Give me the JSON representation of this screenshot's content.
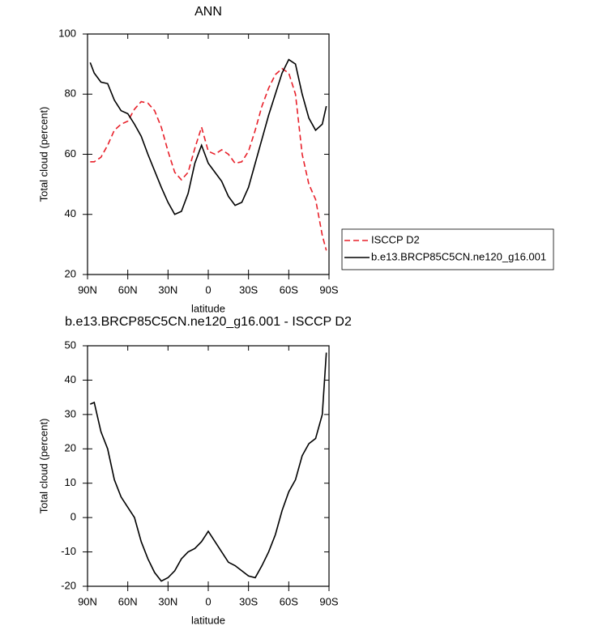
{
  "chart_data": [
    {
      "type": "line",
      "title": "ANN",
      "x_label": "latitude",
      "y_label": "Total cloud (percent)",
      "x": [
        88,
        85,
        80,
        75,
        70,
        65,
        60,
        55,
        50,
        45,
        40,
        35,
        30,
        25,
        20,
        15,
        10,
        5,
        0,
        -5,
        -10,
        -15,
        -20,
        -25,
        -30,
        -35,
        -40,
        -45,
        -50,
        -55,
        -60,
        -65,
        -70,
        -75,
        -80,
        -85,
        -88
      ],
      "series": [
        {
          "name": "ISCCP D2",
          "color": "#e8202a",
          "style": "dashed",
          "values": [
            57.5,
            57.5,
            59,
            63,
            68,
            70,
            71,
            75,
            77.5,
            77,
            74.5,
            69,
            61,
            54,
            51.5,
            54,
            62,
            69,
            61,
            60,
            61.5,
            60,
            57,
            57.5,
            61,
            68,
            76,
            82,
            86.5,
            88.5,
            87,
            80,
            60,
            50,
            45,
            33,
            28
          ]
        },
        {
          "name": "b.e13.BRCP85C5CN.ne120_g16.001",
          "color": "#000000",
          "style": "solid",
          "values": [
            90.5,
            87,
            84,
            83.5,
            78,
            74.5,
            73.5,
            70,
            66,
            60,
            54.5,
            49,
            44,
            40,
            41,
            47,
            57,
            63,
            57,
            54,
            51,
            46,
            43,
            44,
            49,
            57,
            65,
            73,
            80,
            87,
            91.5,
            90,
            80,
            72,
            68,
            70,
            76
          ]
        }
      ],
      "xlim": [
        90,
        -90
      ],
      "ylim": [
        20,
        100
      ],
      "xticks": [
        {
          "value": 90,
          "label": "90N"
        },
        {
          "value": 60,
          "label": "60N"
        },
        {
          "value": 30,
          "label": "30N"
        },
        0,
        {
          "value": -30,
          "label": "30S"
        },
        {
          "value": -60,
          "label": "60S"
        },
        {
          "value": -90,
          "label": "90S"
        }
      ],
      "yticks": [
        20,
        40,
        60,
        80,
        100
      ],
      "legend": "right"
    },
    {
      "type": "line",
      "title": "b.e13.BRCP85C5CN.ne120_g16.001 - ISCCP D2",
      "x_label": "latitude",
      "y_label": "Total cloud (percent)",
      "x": [
        88,
        85,
        80,
        75,
        70,
        65,
        60,
        55,
        50,
        45,
        40,
        35,
        30,
        25,
        20,
        15,
        10,
        5,
        0,
        -5,
        -10,
        -15,
        -20,
        -25,
        -30,
        -35,
        -40,
        -45,
        -50,
        -55,
        -60,
        -65,
        -70,
        -75,
        -80,
        -85,
        -88
      ],
      "series": [
        {
          "color": "#000000",
          "style": "solid",
          "values": [
            33,
            33.5,
            25,
            20,
            11,
            6,
            3,
            0,
            -7,
            -12,
            -16,
            -18.5,
            -17.5,
            -15.5,
            -12,
            -10,
            -9,
            -7,
            -4,
            -7,
            -10,
            -13,
            -14,
            -15.5,
            -17,
            -17.5,
            -14,
            -10,
            -5,
            2,
            7.5,
            11,
            18,
            21.5,
            23,
            30,
            48
          ]
        }
      ],
      "xlim": [
        90,
        -90
      ],
      "ylim": [
        -20,
        50
      ],
      "xticks": [
        {
          "value": 90,
          "label": "90N"
        },
        {
          "value": 60,
          "label": "60N"
        },
        {
          "value": 30,
          "label": "30N"
        },
        0,
        {
          "value": -30,
          "label": "30S"
        },
        {
          "value": -60,
          "label": "60S"
        },
        {
          "value": -90,
          "label": "90S"
        }
      ],
      "yticks": [
        -20,
        -10,
        0,
        10,
        20,
        30,
        40,
        50
      ]
    }
  ]
}
